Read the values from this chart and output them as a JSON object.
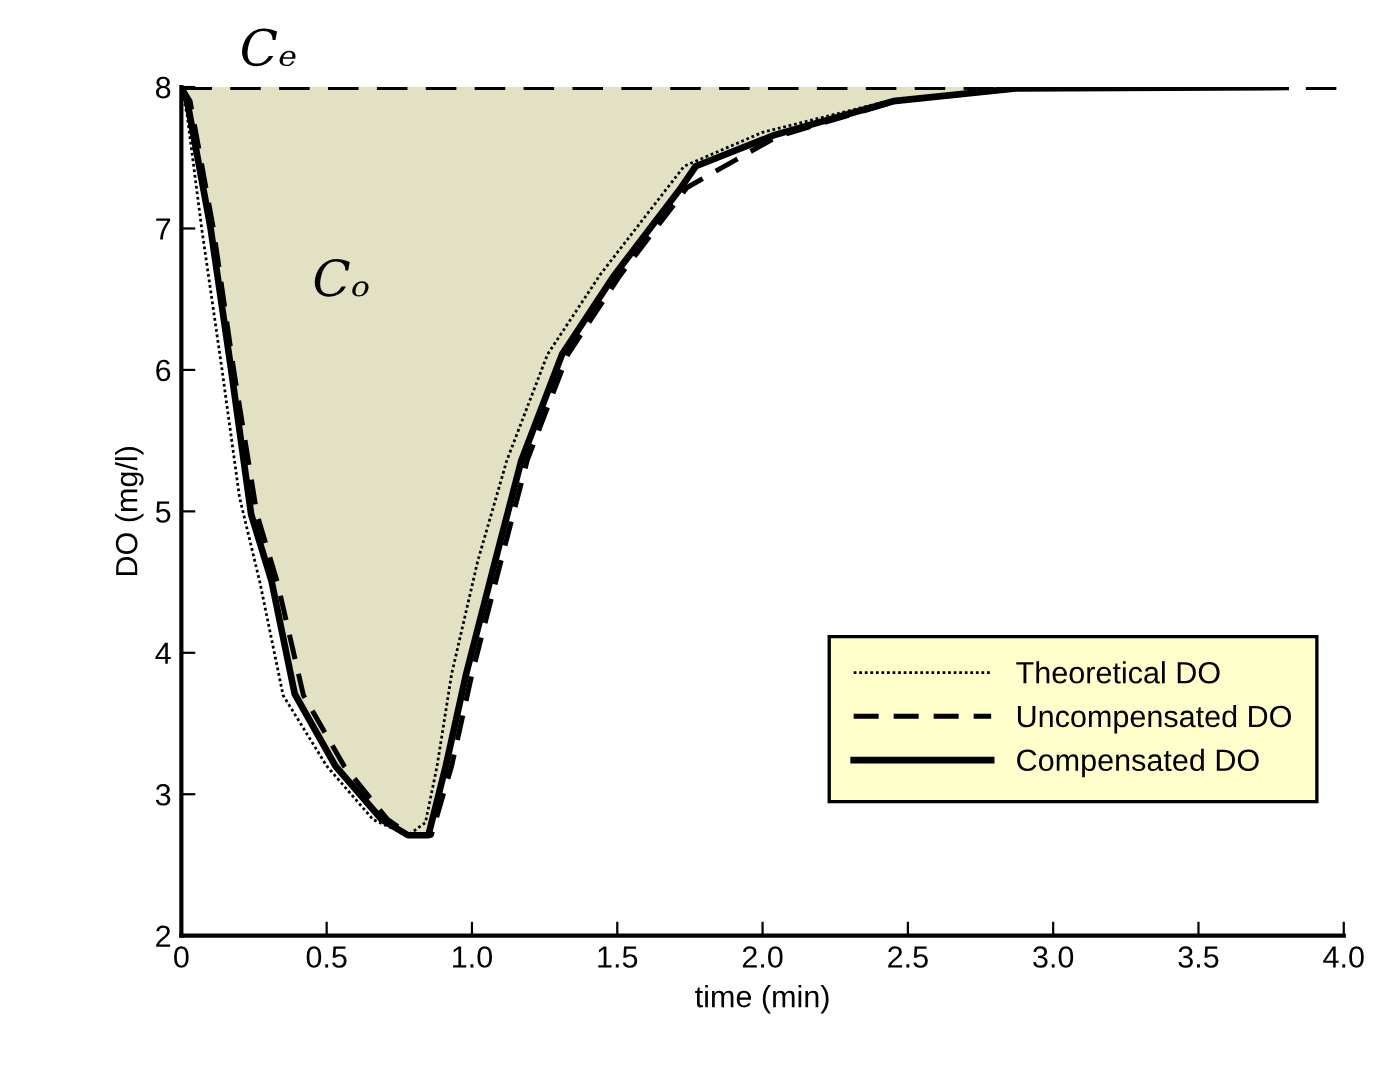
{
  "chart_data": {
    "type": "line",
    "xlabel": "time (min)",
    "ylabel": "DO (mg/l)",
    "xlim": [
      0,
      4.0
    ],
    "xticks": [
      0,
      0.5,
      {
        "value": 1,
        "label": "1.0"
      },
      1.5,
      {
        "value": 2,
        "label": "2.0"
      },
      2.5,
      {
        "value": 3,
        "label": "3.0"
      },
      3.5,
      {
        "value": 4,
        "label": "4.0"
      }
    ],
    "ylim": [
      2,
      8
    ],
    "yticks": [
      2,
      3,
      4,
      5,
      6,
      7,
      8
    ],
    "grid": false,
    "legend": "bottom right",
    "ref_lines": [
      {
        "axis": "y",
        "value": 8,
        "label": "Cₑ",
        "line_style": "dashed",
        "color": "#000000"
      }
    ],
    "annotations": [
      "Cₒ"
    ],
    "series": [
      {
        "name": "Theoretical DO",
        "color": "#000000",
        "line_style": "dotted",
        "x": [
          0,
          0.02,
          0.07,
          0.14,
          0.2,
          0.27,
          0.35,
          0.5,
          0.66,
          0.78,
          0.84,
          0.88,
          0.93,
          1.02,
          1.12,
          1.26,
          1.44,
          1.73,
          2.0,
          2.45,
          2.87,
          3.8
        ],
        "values": [
          8,
          7.8,
          7.0,
          6.0,
          5.1,
          4.5,
          3.7,
          3.2,
          2.82,
          2.71,
          2.8,
          3.2,
          3.85,
          4.65,
          5.36,
          6.11,
          6.67,
          7.44,
          7.68,
          7.91,
          7.99,
          8.0
        ]
      },
      {
        "name": "Uncompensated DO",
        "color": "#000000",
        "line_style": "dashed",
        "x": [
          0,
          0.03,
          0.11,
          0.18,
          0.26,
          0.33,
          0.42,
          0.56,
          0.71,
          0.79,
          0.86,
          0.93,
          1.0,
          1.1,
          1.19,
          1.33,
          1.51,
          1.74,
          2.05,
          2.46,
          2.88,
          3.8
        ],
        "values": [
          8,
          7.9,
          7.0,
          6.0,
          4.98,
          4.5,
          3.7,
          3.2,
          2.82,
          2.71,
          2.71,
          3.2,
          3.85,
          4.65,
          5.36,
          6.11,
          6.67,
          7.29,
          7.65,
          7.9,
          7.99,
          8.0
        ]
      },
      {
        "name": "Compensated DO",
        "color": "#000000",
        "line_style": "solid",
        "x": [
          0,
          0.02,
          0.1,
          0.17,
          0.24,
          0.31,
          0.39,
          0.53,
          0.69,
          0.78,
          0.85,
          0.91,
          0.98,
          1.08,
          1.17,
          1.31,
          1.49,
          1.72,
          1.77,
          2.04,
          2.45,
          2.87,
          3.8
        ],
        "values": [
          8,
          7.9,
          7.01,
          6.02,
          4.98,
          4.51,
          3.71,
          3.2,
          2.82,
          2.71,
          2.71,
          3.2,
          3.85,
          4.65,
          5.36,
          6.11,
          6.67,
          7.29,
          7.44,
          7.66,
          7.9,
          7.99,
          8.0
        ],
        "lower": [
          8,
          7.9,
          7.01,
          6.02,
          4.98,
          4.51,
          3.71,
          3.2,
          2.82,
          2.71,
          2.71,
          3.2,
          3.85,
          4.65,
          5.36,
          6.11,
          6.67,
          7.29,
          7.44,
          7.66,
          7.9,
          7.99,
          8.0
        ],
        "upper": [
          8,
          8,
          8,
          8,
          8,
          8,
          8,
          8,
          8,
          8,
          8,
          8,
          8,
          8,
          8,
          8,
          8,
          8,
          8,
          8,
          8,
          8,
          8
        ]
      }
    ]
  }
}
